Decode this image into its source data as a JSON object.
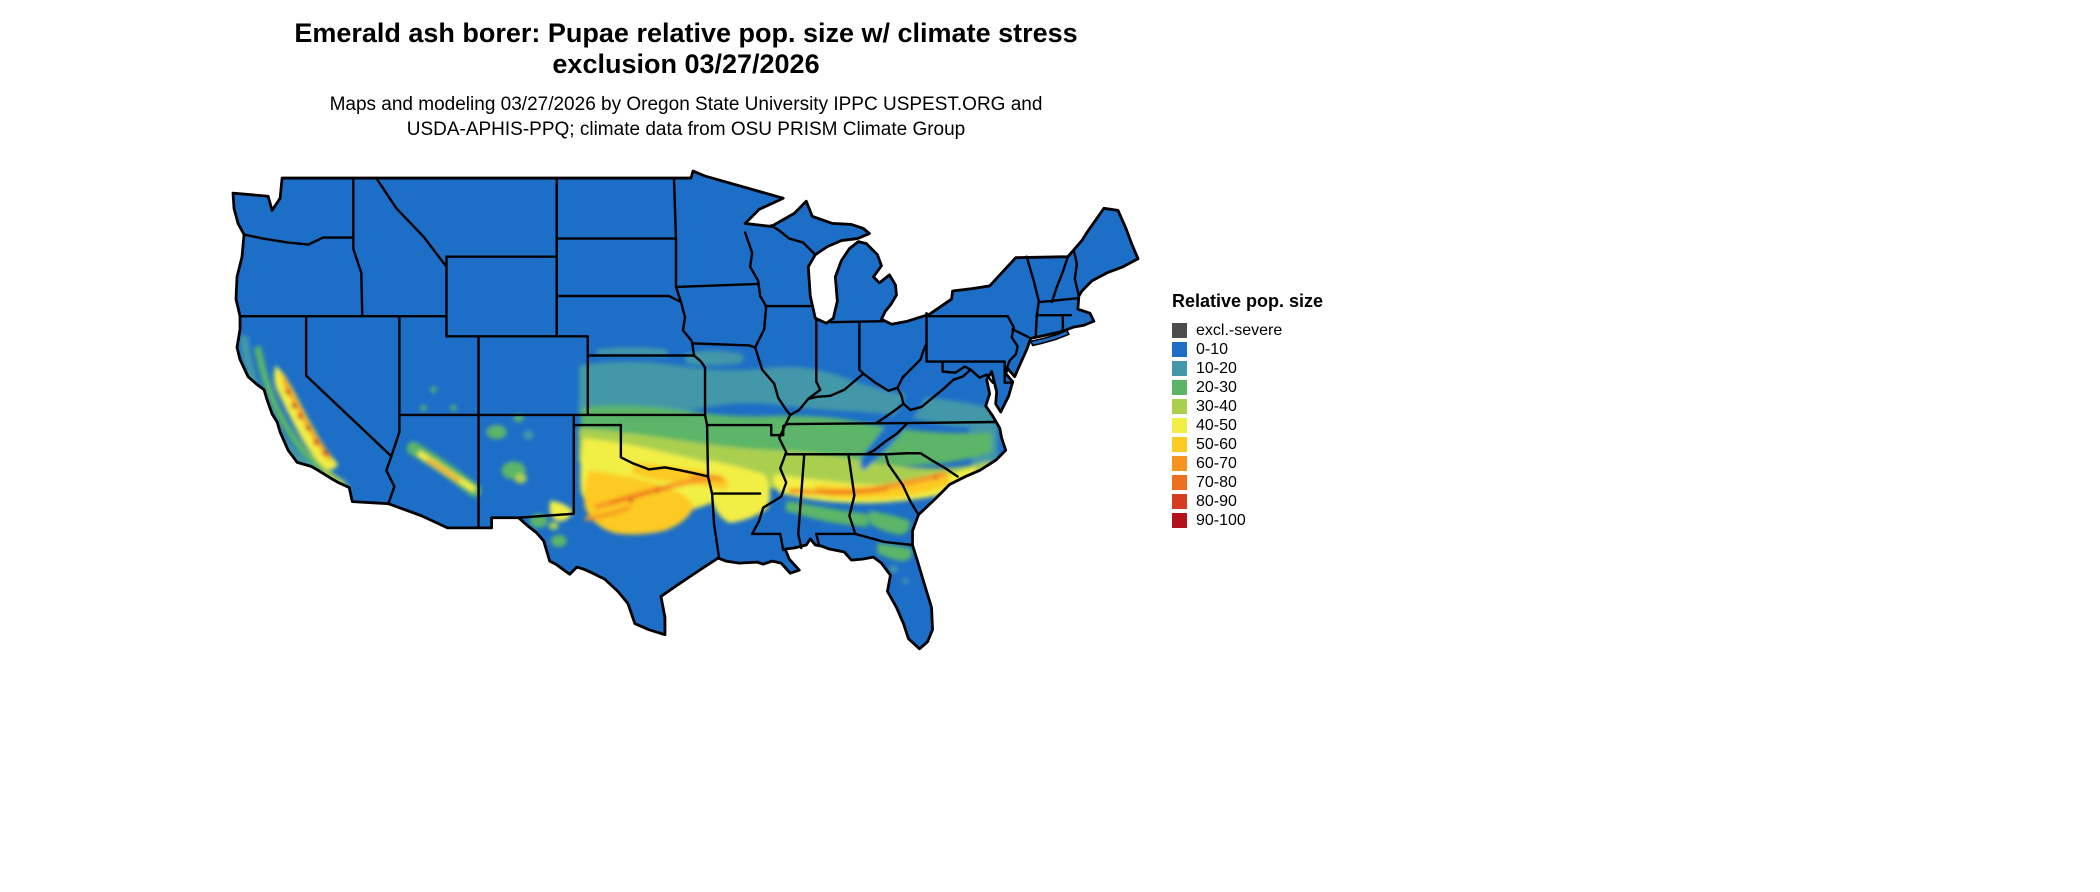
{
  "title": {
    "line1": "Emerald ash borer: Pupae relative pop. size w/ climate stress",
    "line2": "exclusion 03/27/2026"
  },
  "subtitle": {
    "line1": "Maps and modeling 03/27/2026 by Oregon State University IPPC USPEST.ORG and",
    "line2": "USDA-APHIS-PPQ; climate data from OSU PRISM Climate Group"
  },
  "legend": {
    "title": "Relative pop. size",
    "items": [
      {
        "label": "excl.-severe",
        "color": "#4d4d4d"
      },
      {
        "label": "0-10",
        "color": "#1d6ec7"
      },
      {
        "label": "10-20",
        "color": "#4297a8"
      },
      {
        "label": "20-30",
        "color": "#5cb567"
      },
      {
        "label": "30-40",
        "color": "#aacf4f"
      },
      {
        "label": "40-50",
        "color": "#f1ef45"
      },
      {
        "label": "50-60",
        "color": "#fcca20"
      },
      {
        "label": "60-70",
        "color": "#f79420"
      },
      {
        "label": "70-80",
        "color": "#ec701d"
      },
      {
        "label": "80-90",
        "color": "#d63c20"
      },
      {
        "label": "90-100",
        "color": "#b2131b"
      }
    ]
  },
  "map": {
    "region": "Continental United States",
    "type": "raster choropleth of modeled relative population size",
    "base_level": "0-10",
    "high_value_areas": [
      "California Central Valley",
      "Central Texas through southern Oklahoma and Arkansas",
      "Central Arizona highlands",
      "Deep South band across Mississippi, Alabama, Georgia, South Carolina"
    ],
    "low_value_areas": [
      "Northern tier states",
      "Rocky Mountains",
      "Appalachian Mountains",
      "South Texas and Gulf Coast",
      "Florida peninsula"
    ]
  }
}
